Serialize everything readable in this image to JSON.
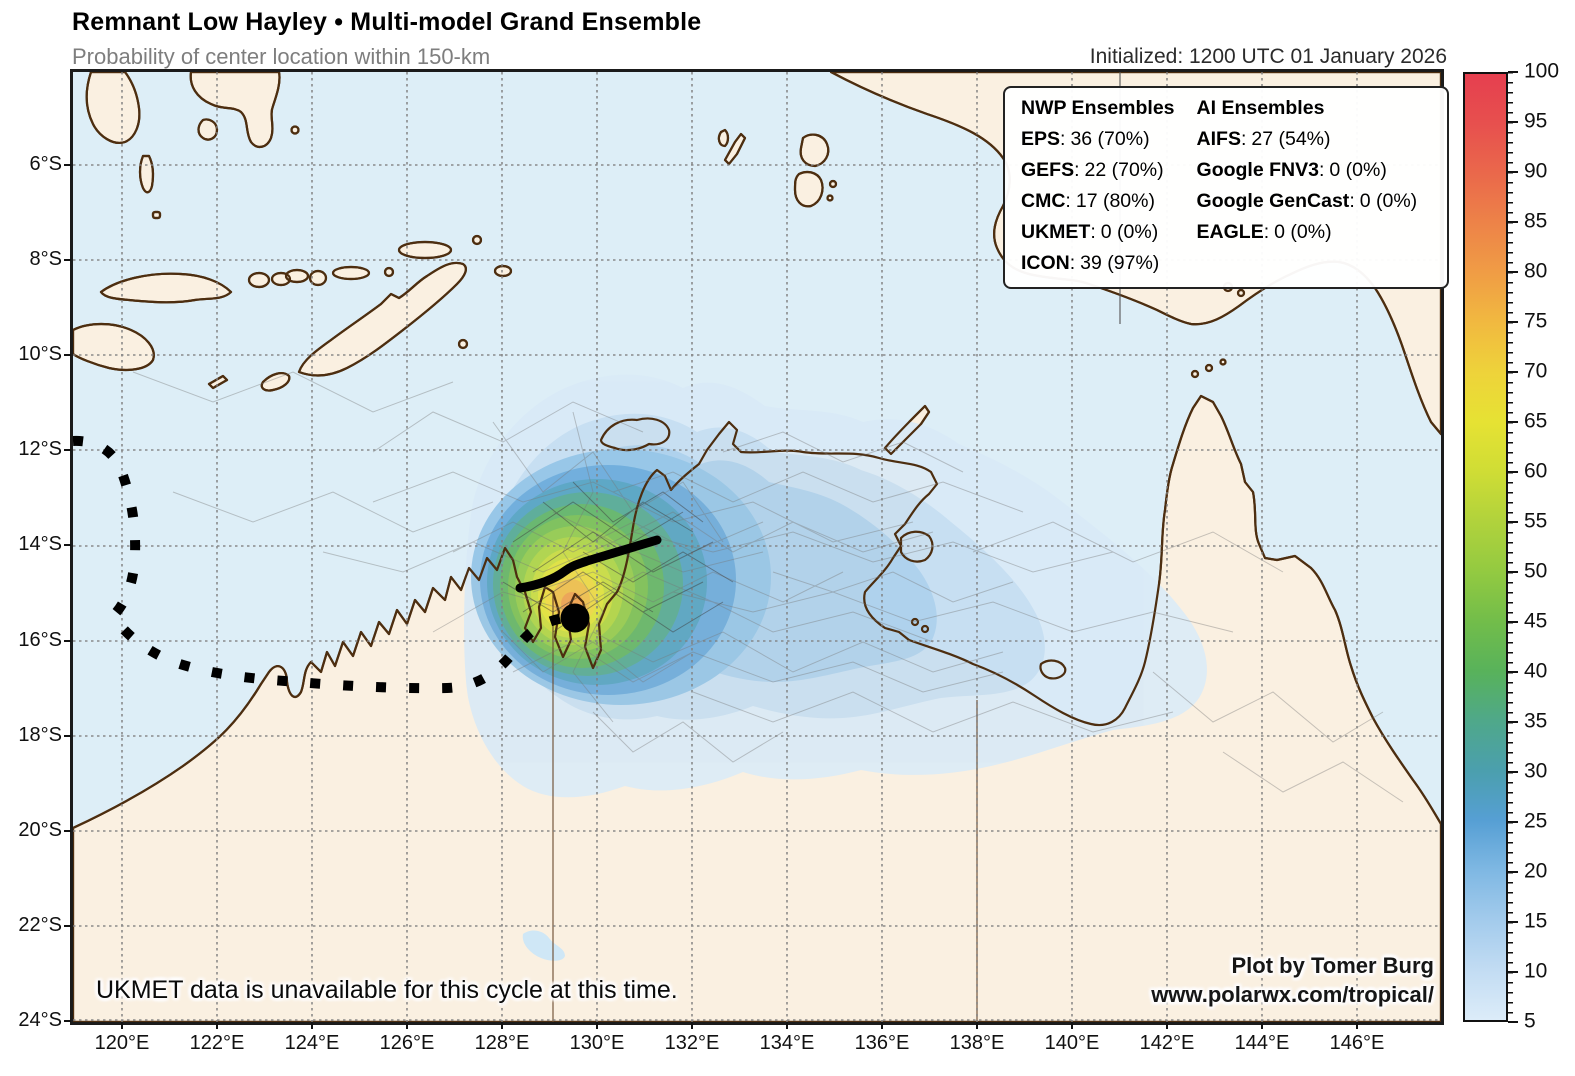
{
  "header": {
    "title": "Remnant Low Hayley • Multi-model Grand Ensemble",
    "subtitle": "Probability of center location within 150-km",
    "initialized": "Initialized: 1200 UTC 01 January 2026"
  },
  "legend": {
    "sep": ":",
    "nwp": {
      "heading": "NWP Ensembles",
      "items": [
        {
          "model": "EPS",
          "value": "36 (70%)"
        },
        {
          "model": "GEFS",
          "value": "22 (70%)"
        },
        {
          "model": "CMC",
          "value": "17 (80%)"
        },
        {
          "model": "UKMET",
          "value": "0 (0%)"
        },
        {
          "model": "ICON",
          "value": "39 (97%)"
        }
      ]
    },
    "ai": {
      "heading": "AI Ensembles",
      "items": [
        {
          "model": "AIFS",
          "value": "27 (54%)"
        },
        {
          "model": "Google FNV3",
          "value": "0 (0%)"
        },
        {
          "model": "Google GenCast",
          "value": "0 (0%)"
        },
        {
          "model": "EAGLE",
          "value": "0 (0%)"
        }
      ]
    }
  },
  "axes": {
    "x_ticks": [
      "120°E",
      "122°E",
      "124°E",
      "126°E",
      "128°E",
      "130°E",
      "132°E",
      "134°E",
      "136°E",
      "138°E",
      "140°E",
      "142°E",
      "144°E",
      "146°E"
    ],
    "y_ticks": [
      "6°S",
      "8°S",
      "10°S",
      "12°S",
      "14°S",
      "16°S",
      "18°S",
      "20°S",
      "22°S",
      "24°S"
    ]
  },
  "colorbar": {
    "tick_labels": [
      "100",
      "95",
      "90",
      "85",
      "80",
      "75",
      "70",
      "65",
      "60",
      "55",
      "50",
      "45",
      "40",
      "35",
      "30",
      "25",
      "20",
      "15",
      "10",
      "5"
    ]
  },
  "notes": {
    "ukmet_note": "UKMET data is unavailable for this cycle at this time.",
    "credit_line1": "Plot by Tomer Burg",
    "credit_line2": "www.polarwx.com/tropical/"
  }
}
